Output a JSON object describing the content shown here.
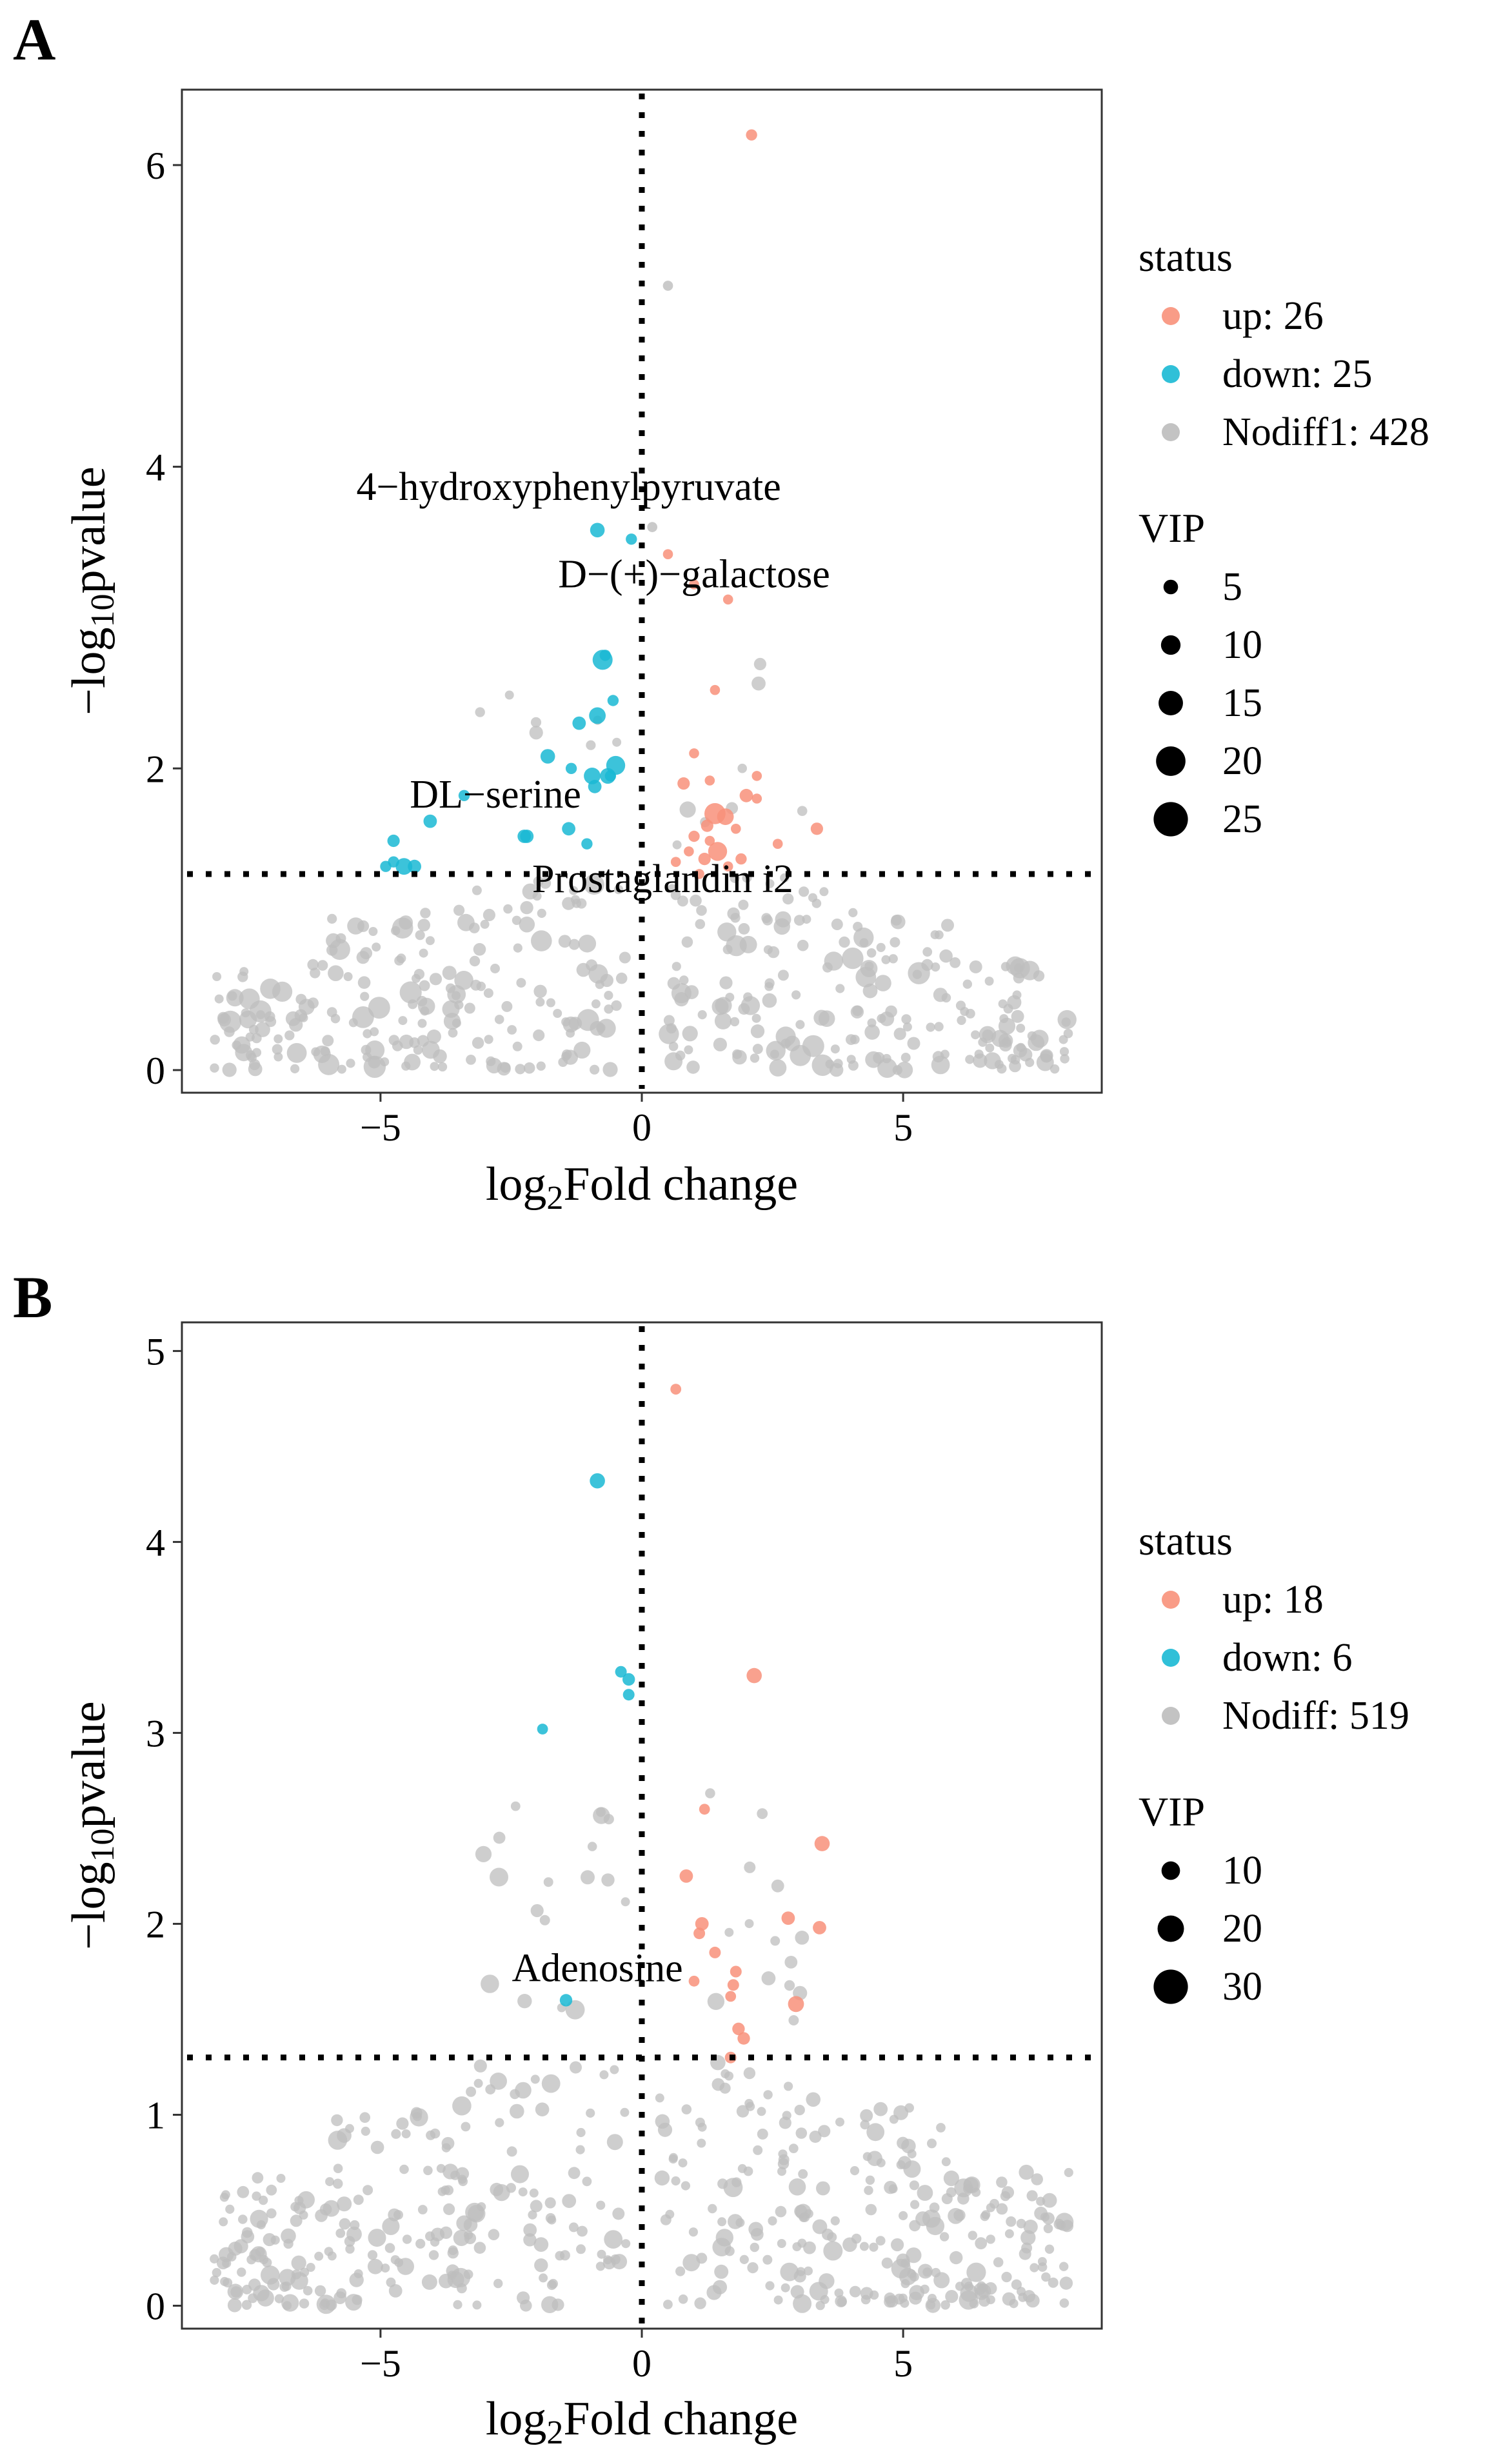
{
  "colors": {
    "up": "#F8917A",
    "down": "#1AB9D4",
    "nodiff": "#BDBDBD"
  },
  "chart_data": [
    {
      "type": "scatter",
      "panel_label": "A",
      "xlabel": "log2Fold change",
      "ylabel": "-log10pvalue",
      "xlim": [
        -8.8,
        8.8
      ],
      "ylim": [
        -0.15,
        6.5
      ],
      "x_ticks": [
        -5,
        0,
        5
      ],
      "x_tick_labels": [
        "−5",
        "0",
        "5"
      ],
      "y_ticks": [
        0,
        2,
        4,
        6
      ],
      "y_tick_labels": [
        "0",
        "2",
        "4",
        "6"
      ],
      "vline_x": 0,
      "hline_y": 1.3,
      "legend_status": {
        "title": "status",
        "entries": [
          {
            "status": "up",
            "label": "up:",
            "count": "26"
          },
          {
            "status": "down",
            "label": "down:",
            "count": "25"
          },
          {
            "status": "nodiff",
            "label": "Nodiff1:",
            "count": "428"
          }
        ]
      },
      "legend_vip": {
        "title": "VIP",
        "values": [
          "5",
          "10",
          "15",
          "20",
          "25"
        ]
      },
      "vip_scale": [
        5,
        25
      ],
      "annotations": [
        {
          "text": "4−hydroxyphenylpyruvate",
          "x": -1.4,
          "y": 3.78
        },
        {
          "text": "D−(+)−galactose",
          "x": 1.0,
          "y": 3.2
        },
        {
          "text": "DL−serine",
          "x": -2.8,
          "y": 1.74
        },
        {
          "text": "Prostaglandin i2",
          "x": 0.4,
          "y": 1.18
        }
      ],
      "points_up": [
        [
          2.1,
          6.2,
          7
        ],
        [
          0.5,
          3.42,
          6
        ],
        [
          1.0,
          3.22,
          6
        ],
        [
          1.65,
          3.12,
          6
        ],
        [
          1.4,
          2.52,
          6
        ],
        [
          1.0,
          2.1,
          6
        ],
        [
          0.8,
          1.9,
          8
        ],
        [
          1.3,
          1.92,
          6
        ],
        [
          2.0,
          1.82,
          9
        ],
        [
          2.2,
          1.8,
          6
        ],
        [
          1.4,
          1.7,
          16
        ],
        [
          1.6,
          1.68,
          12
        ],
        [
          1.25,
          1.62,
          8
        ],
        [
          1.0,
          1.55,
          7
        ],
        [
          2.6,
          1.5,
          6
        ],
        [
          3.35,
          1.6,
          8
        ],
        [
          1.3,
          1.52,
          6
        ],
        [
          1.45,
          1.45,
          14
        ],
        [
          1.9,
          1.4,
          7
        ],
        [
          1.2,
          1.4,
          8
        ],
        [
          1.65,
          1.35,
          6
        ],
        [
          0.65,
          1.38,
          6
        ],
        [
          1.1,
          1.3,
          6
        ],
        [
          0.9,
          1.45,
          6
        ],
        [
          2.2,
          1.95,
          6
        ],
        [
          1.8,
          1.6,
          6
        ]
      ],
      "points_down": [
        [
          -0.85,
          3.58,
          10
        ],
        [
          -0.2,
          3.52,
          7
        ],
        [
          -0.75,
          2.72,
          15
        ],
        [
          -0.7,
          2.75,
          7
        ],
        [
          -0.55,
          2.45,
          7
        ],
        [
          -0.85,
          2.35,
          12
        ],
        [
          -1.2,
          2.3,
          9
        ],
        [
          -1.8,
          2.08,
          10
        ],
        [
          -0.5,
          2.02,
          14
        ],
        [
          -0.65,
          1.95,
          11
        ],
        [
          -0.95,
          1.95,
          12
        ],
        [
          -1.35,
          2.0,
          7
        ],
        [
          -0.9,
          1.88,
          9
        ],
        [
          -1.4,
          1.6,
          9
        ],
        [
          -2.2,
          1.55,
          9
        ],
        [
          -2.25,
          1.55,
          9
        ],
        [
          -4.05,
          1.65,
          9
        ],
        [
          -4.75,
          1.52,
          8
        ],
        [
          -4.9,
          1.35,
          7
        ],
        [
          -4.55,
          1.35,
          12
        ],
        [
          -4.35,
          1.35,
          9
        ],
        [
          -4.75,
          1.38,
          7
        ],
        [
          -3.4,
          1.82,
          7
        ],
        [
          -0.6,
          1.95,
          7
        ],
        [
          -1.05,
          1.5,
          7
        ]
      ]
    },
    {
      "type": "scatter",
      "panel_label": "B",
      "xlabel": "log2Fold change",
      "ylabel": "-log10pvalue",
      "xlim": [
        -8.8,
        8.8
      ],
      "ylim": [
        -0.12,
        5.15
      ],
      "x_ticks": [
        -5,
        0,
        5
      ],
      "x_tick_labels": [
        "−5",
        "0",
        "5"
      ],
      "y_ticks": [
        0,
        1,
        2,
        3,
        4,
        5
      ],
      "y_tick_labels": [
        "0",
        "1",
        "2",
        "3",
        "4",
        "5"
      ],
      "vline_x": 0,
      "hline_y": 1.3,
      "legend_status": {
        "title": "status",
        "entries": [
          {
            "status": "up",
            "label": "up:",
            "count": "18"
          },
          {
            "status": "down",
            "label": "down:",
            "count": "6"
          },
          {
            "status": "nodiff",
            "label": "Nodiff:",
            "count": "519"
          }
        ]
      },
      "legend_vip": {
        "title": "VIP",
        "values": [
          "10",
          "20",
          "30"
        ]
      },
      "vip_scale": [
        5,
        30
      ],
      "annotations": [
        {
          "text": "Adenosine",
          "x": -0.85,
          "y": 1.7
        }
      ],
      "points_up": [
        [
          0.65,
          4.8,
          7
        ],
        [
          2.15,
          3.3,
          12
        ],
        [
          1.2,
          2.6,
          7
        ],
        [
          3.45,
          2.42,
          12
        ],
        [
          0.85,
          2.25,
          10
        ],
        [
          1.15,
          2.0,
          10
        ],
        [
          1.1,
          1.95,
          8
        ],
        [
          2.8,
          2.03,
          10
        ],
        [
          3.4,
          1.98,
          10
        ],
        [
          1.4,
          1.85,
          8
        ],
        [
          1.8,
          1.75,
          8
        ],
        [
          1.75,
          1.68,
          8
        ],
        [
          1.0,
          1.7,
          7
        ],
        [
          1.7,
          1.62,
          7
        ],
        [
          2.95,
          1.58,
          13
        ],
        [
          1.85,
          1.45,
          9
        ],
        [
          1.95,
          1.4,
          9
        ],
        [
          1.7,
          1.3,
          8
        ]
      ],
      "points_down": [
        [
          -0.85,
          4.32,
          12
        ],
        [
          -0.4,
          3.32,
          8
        ],
        [
          -0.25,
          3.28,
          9
        ],
        [
          -0.25,
          3.2,
          8
        ],
        [
          -1.9,
          3.02,
          7
        ],
        [
          -1.45,
          1.6,
          9
        ]
      ]
    }
  ]
}
